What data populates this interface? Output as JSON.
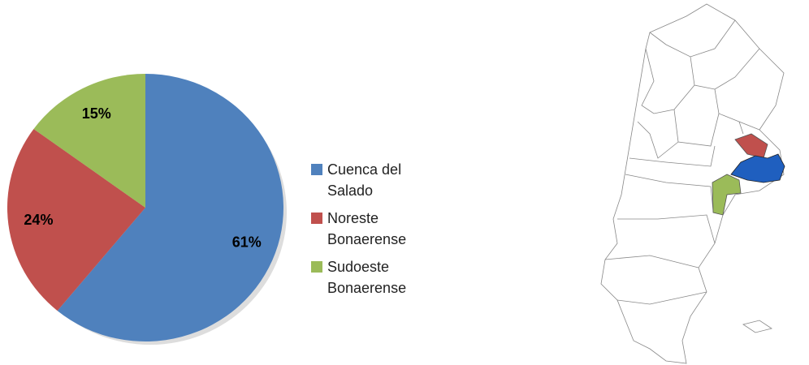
{
  "chart_data": {
    "type": "pie",
    "categories": [
      "Cuenca del Salado",
      "Noreste Bonaerense",
      "Sudoeste Bonaerense"
    ],
    "values": [
      61,
      24,
      15
    ],
    "value_labels": [
      "61%",
      "24%",
      "15%"
    ],
    "colors": [
      "#4f81bd",
      "#c0504d",
      "#9bbb59"
    ]
  }
}
